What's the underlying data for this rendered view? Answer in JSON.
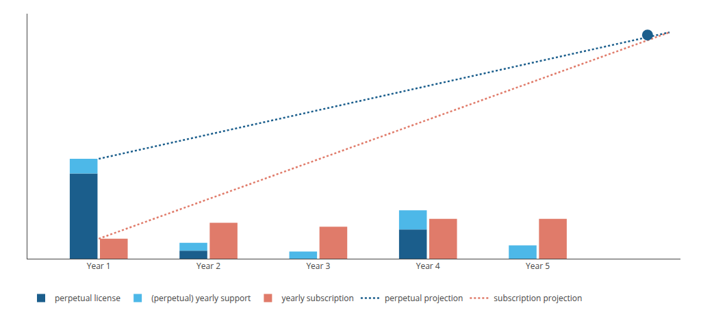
{
  "chart_data": {
    "type": "bar",
    "xlim": [
      0.35,
      6.3
    ],
    "xticks": [
      {
        "value": 1,
        "label": "Year 1"
      },
      {
        "value": 2,
        "label": "Year 2"
      },
      {
        "value": 3,
        "label": "Year 3"
      },
      {
        "value": 4,
        "label": "Year 4"
      },
      {
        "value": 5,
        "label": "Year 5"
      }
    ],
    "ylim": [
      0,
      9.2
    ],
    "yticks": [],
    "tick_labels": "x",
    "grid": false,
    "legend": "bottom",
    "series": [
      {
        "name": "perpetual license",
        "type": "bar",
        "color": "#1b5e8c",
        "x": [
          1,
          2,
          3,
          4,
          5
        ],
        "values": [
          3.2,
          0.3,
          0.0,
          1.1,
          0.0
        ]
      },
      {
        "name": "(perpetual) yearly support",
        "type": "bar",
        "color": "#4db8e8",
        "stacked": true,
        "x": [
          1,
          2,
          3,
          4,
          5
        ],
        "values": [
          0.55,
          0.3,
          0.27,
          0.72,
          0.5
        ]
      },
      {
        "name": "yearly subscription",
        "type": "bar",
        "color": "#e07b6a",
        "x": [
          1,
          2,
          3,
          4,
          5
        ],
        "values": [
          0.75,
          1.35,
          1.2,
          1.5,
          1.5
        ]
      },
      {
        "name": "perpetual projection",
        "type": "line",
        "line_style": "dotted",
        "color": "#1b5e8c",
        "x": [
          1,
          6.2
        ],
        "values": [
          3.75,
          8.5
        ]
      },
      {
        "name": "subscription projection",
        "type": "line",
        "line_style": "dotted",
        "color": "#e07b6a",
        "x": [
          1,
          6.2
        ],
        "values": [
          0.75,
          8.5
        ]
      },
      {
        "type": "scatter",
        "marker": "circle",
        "color": "#1b5e8c",
        "x": [
          6.0
        ],
        "values": [
          8.4
        ]
      }
    ]
  }
}
